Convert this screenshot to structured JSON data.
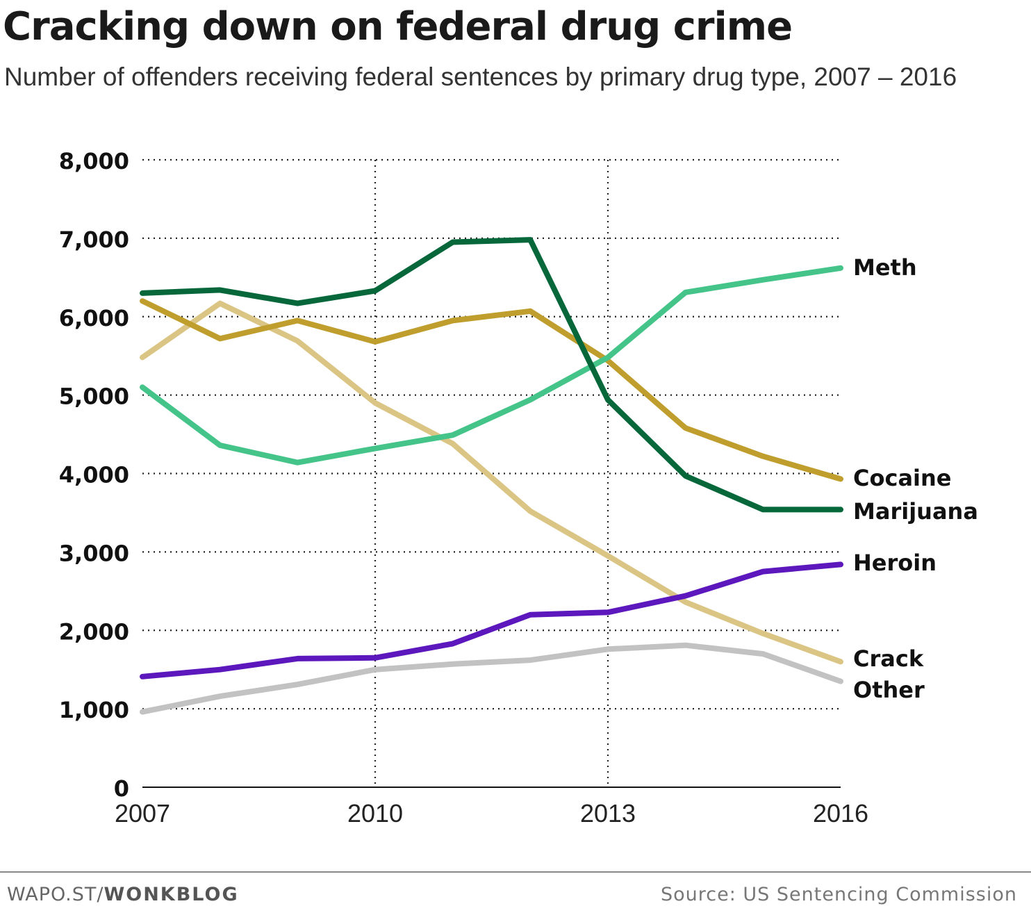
{
  "header": {
    "title": "Cracking down on federal drug crime",
    "subtitle": "Number of offenders receiving federal sentences by primary drug type, 2007 – 2016"
  },
  "footer": {
    "credit_prefix": "WAPO.ST/",
    "credit_strong": "WONKBLOG",
    "source": "Source: US Sentencing Commission"
  },
  "chart_data": {
    "type": "line",
    "title": "Cracking down on federal drug crime",
    "subtitle": "Number of offenders receiving federal sentences by primary drug type, 2007 – 2016",
    "xlabel": "",
    "ylabel": "",
    "x": [
      2007,
      2008,
      2009,
      2010,
      2011,
      2012,
      2013,
      2014,
      2015,
      2016
    ],
    "x_ticks": [
      2007,
      2010,
      2013,
      2016
    ],
    "x_tick_labels": [
      "2007",
      "2010",
      "2013",
      "2016"
    ],
    "y_ticks": [
      0,
      1000,
      2000,
      3000,
      4000,
      5000,
      6000,
      7000,
      8000
    ],
    "y_tick_labels": [
      "0",
      "1,000",
      "2,000",
      "3,000",
      "4,000",
      "5,000",
      "6,000",
      "7,000",
      "8,000"
    ],
    "xlim": [
      2007,
      2016
    ],
    "ylim": [
      0,
      8000
    ],
    "grid": "dotted; horizontal at each y tick, vertical at 2010 and 2013",
    "legend": "direct labels at right end of each line",
    "series": [
      {
        "name": "Meth",
        "color": "#44c489",
        "values": [
          5100,
          4360,
          4140,
          4320,
          4490,
          4940,
          5480,
          6310,
          6470,
          6620
        ]
      },
      {
        "name": "Cocaine",
        "color": "#bf9e2e",
        "values": [
          6200,
          5720,
          5950,
          5680,
          5950,
          6070,
          5440,
          4580,
          4220,
          3930
        ]
      },
      {
        "name": "Marijuana",
        "color": "#05673a",
        "values": [
          6300,
          6340,
          6170,
          6330,
          6950,
          6980,
          4940,
          3970,
          3540,
          3540
        ]
      },
      {
        "name": "Heroin",
        "color": "#5c17bd",
        "values": [
          1410,
          1500,
          1640,
          1650,
          1830,
          2200,
          2230,
          2440,
          2750,
          2840
        ]
      },
      {
        "name": "Crack",
        "color": "#dbc585",
        "values": [
          5480,
          6170,
          5690,
          4900,
          4380,
          3520,
          2950,
          2360,
          1960,
          1600
        ]
      },
      {
        "name": "Other",
        "color": "#c2c2c2",
        "values": [
          960,
          1160,
          1310,
          1500,
          1570,
          1620,
          1760,
          1810,
          1700,
          1350
        ]
      }
    ]
  }
}
